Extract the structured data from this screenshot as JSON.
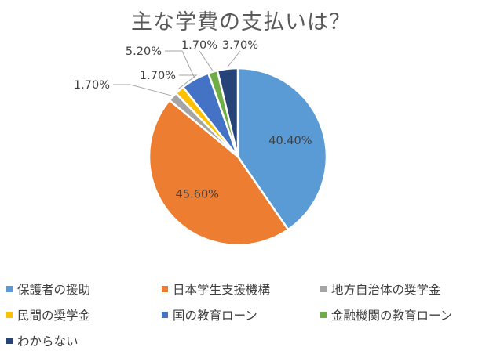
{
  "chart_data": {
    "type": "pie",
    "title": "主な学費の支払いは？",
    "categories": [
      "保護者の援助",
      "日本学生支援機構",
      "地方自治体の奨学金",
      "民間の奨学金",
      "国の教育ローン",
      "金融機関の教育ローン",
      "わからない"
    ],
    "values": [
      40.4,
      45.6,
      1.7,
      1.7,
      5.2,
      1.7,
      3.7
    ],
    "data_labels": [
      "40.40%",
      "45.60%",
      "1.70%",
      "1.70%",
      "5.20%",
      "1.70%",
      "3.70%"
    ],
    "colors": [
      "#5B9BD5",
      "#ED7D31",
      "#A5A5A5",
      "#FFC000",
      "#4472C4",
      "#70AD47",
      "#264478"
    ],
    "start_angle": "12 o'clock, clockwise",
    "legend_position": "bottom"
  }
}
